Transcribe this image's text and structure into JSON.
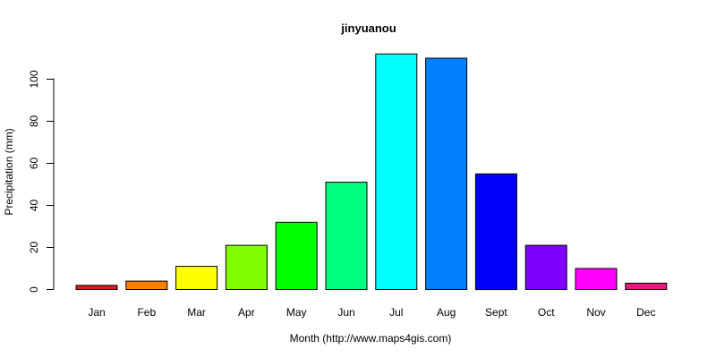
{
  "chart_data": {
    "type": "bar",
    "title": "jinyuanou",
    "xlabel": "Month (http://www.maps4gis.com)",
    "ylabel": "Precipitation (mm)",
    "categories": [
      "Jan",
      "Feb",
      "Mar",
      "Apr",
      "May",
      "Jun",
      "Jul",
      "Aug",
      "Sept",
      "Oct",
      "Nov",
      "Dec"
    ],
    "values": [
      2,
      4,
      11,
      21,
      32,
      51,
      112,
      110,
      55,
      21,
      10,
      3
    ],
    "colors": [
      "#e31a1c",
      "#ff7f00",
      "#ffff00",
      "#80ff00",
      "#00ff00",
      "#00ff80",
      "#00ffff",
      "#0080ff",
      "#0000ff",
      "#8000ff",
      "#ff00ff",
      "#e6197f"
    ],
    "yticks": [
      0,
      20,
      40,
      60,
      80,
      100
    ],
    "ylim": [
      0,
      112
    ],
    "grid": false,
    "legend": "none"
  }
}
